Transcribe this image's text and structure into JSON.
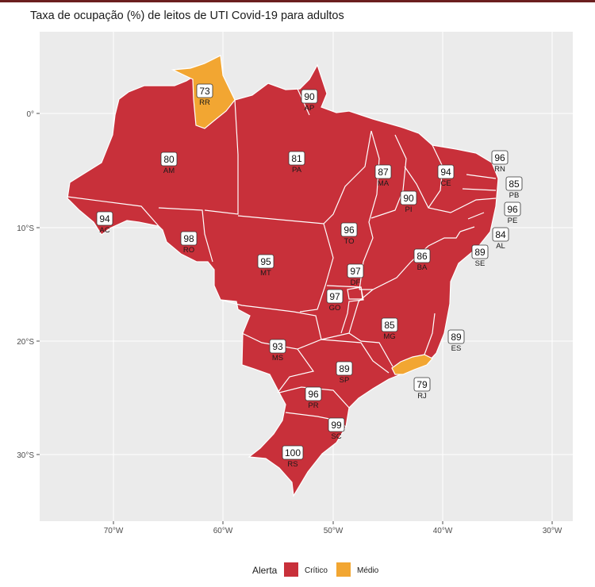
{
  "title": "Taxa de ocupação (%) de leitos de UTI Covid-19 para adultos",
  "colors": {
    "critico": "#c8303a",
    "medio": "#f2a632",
    "panel": "#ebebeb",
    "grid": "#ffffff"
  },
  "axes": {
    "x_ticks": [
      "70°W",
      "60°W",
      "50°W",
      "40°W",
      "30°W"
    ],
    "y_ticks": [
      "0°",
      "10°S",
      "20°S",
      "30°S"
    ]
  },
  "legend": {
    "title": "Alerta",
    "items": [
      {
        "label": "Crítico",
        "color": "#c8303a"
      },
      {
        "label": "Médio",
        "color": "#f2a632"
      }
    ]
  },
  "states": [
    {
      "code": "RR",
      "value": "73",
      "alert": "Médio"
    },
    {
      "code": "AP",
      "value": "90",
      "alert": "Crítico"
    },
    {
      "code": "AM",
      "value": "80",
      "alert": "Crítico"
    },
    {
      "code": "PA",
      "value": "81",
      "alert": "Crítico"
    },
    {
      "code": "MA",
      "value": "87",
      "alert": "Crítico"
    },
    {
      "code": "CE",
      "value": "94",
      "alert": "Crítico"
    },
    {
      "code": "RN",
      "value": "96",
      "alert": "Crítico"
    },
    {
      "code": "PB",
      "value": "85",
      "alert": "Crítico"
    },
    {
      "code": "PE",
      "value": "96",
      "alert": "Crítico"
    },
    {
      "code": "AL",
      "value": "84",
      "alert": "Crítico"
    },
    {
      "code": "SE",
      "value": "89",
      "alert": "Crítico"
    },
    {
      "code": "PI",
      "value": "90",
      "alert": "Crítico"
    },
    {
      "code": "AC",
      "value": "94",
      "alert": "Crítico"
    },
    {
      "code": "RO",
      "value": "98",
      "alert": "Crítico"
    },
    {
      "code": "TO",
      "value": "96",
      "alert": "Crítico"
    },
    {
      "code": "MT",
      "value": "95",
      "alert": "Crítico"
    },
    {
      "code": "BA",
      "value": "86",
      "alert": "Crítico"
    },
    {
      "code": "DF",
      "value": "97",
      "alert": "Crítico"
    },
    {
      "code": "GO",
      "value": "97",
      "alert": "Crítico"
    },
    {
      "code": "MG",
      "value": "85",
      "alert": "Crítico"
    },
    {
      "code": "ES",
      "value": "89",
      "alert": "Crítico"
    },
    {
      "code": "MS",
      "value": "93",
      "alert": "Crítico"
    },
    {
      "code": "SP",
      "value": "89",
      "alert": "Crítico"
    },
    {
      "code": "RJ",
      "value": "79",
      "alert": "Médio"
    },
    {
      "code": "PR",
      "value": "96",
      "alert": "Crítico"
    },
    {
      "code": "SC",
      "value": "99",
      "alert": "Crítico"
    },
    {
      "code": "RS",
      "value": "100",
      "alert": "Crítico"
    }
  ]
}
